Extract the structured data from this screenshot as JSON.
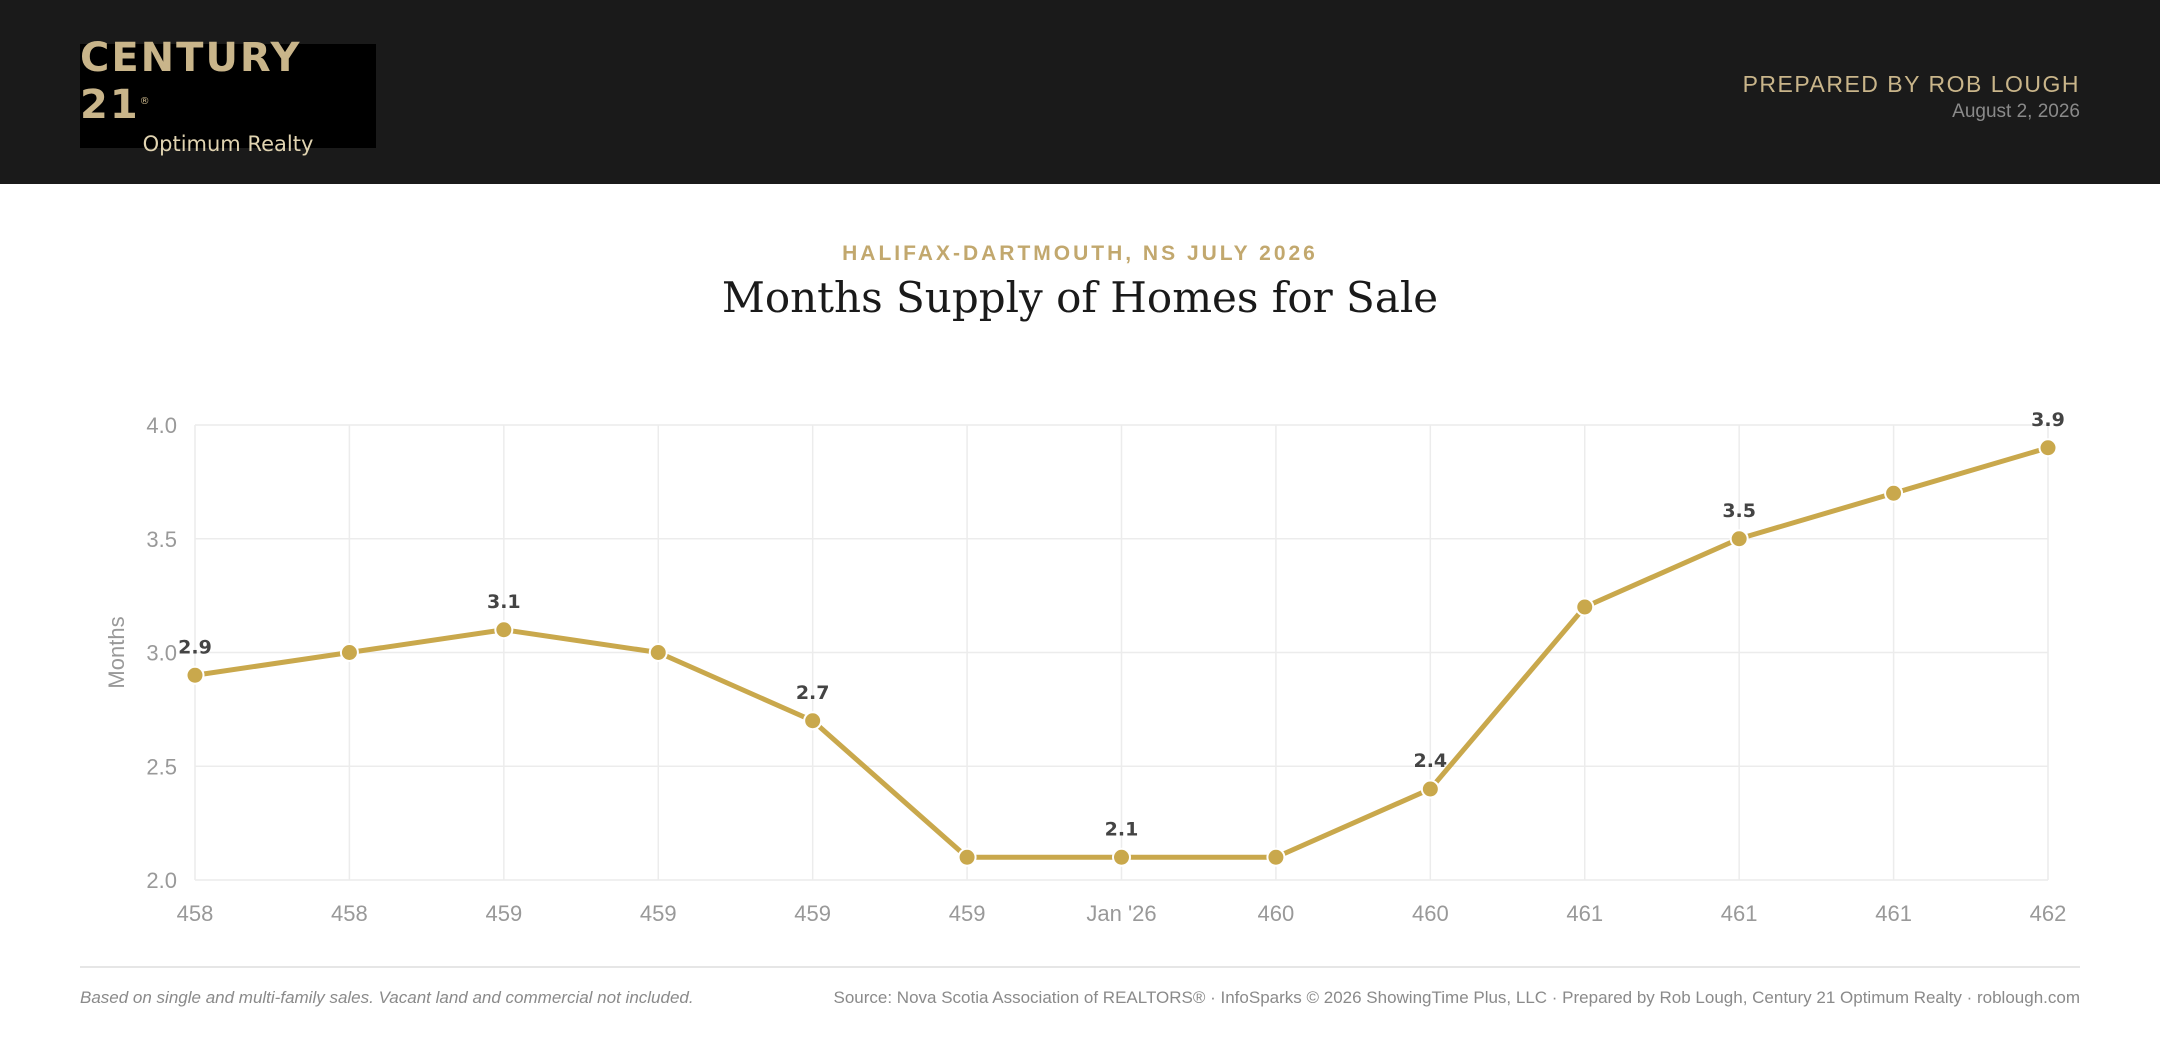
{
  "header": {
    "logo": {
      "brand": "CENTURY 21",
      "reg_mark": "®",
      "sub": "Optimum Realty"
    },
    "prepared_by": "PREPARED BY ROB LOUGH",
    "date": "August 2, 2026"
  },
  "colors": {
    "header_bg": "#1a1a1a",
    "gold": "#c9a84c",
    "accent_text": "#c2a86e"
  },
  "chart_data": {
    "type": "line",
    "subtitle": "HALIFAX-DARTMOUTH, NS JULY 2026",
    "title": "Months Supply of Homes for Sale",
    "ylabel": "Months",
    "xlabel": "",
    "ylim": [
      2.0,
      4.0
    ],
    "y_ticks": [
      "4.0",
      "3.5",
      "3.0",
      "2.5",
      "2.0"
    ],
    "grid": true,
    "categories": [
      "458",
      "458",
      "459",
      "459",
      "459",
      "459",
      "Jan '26",
      "460",
      "460",
      "461",
      "461",
      "461",
      "462"
    ],
    "series": [
      {
        "values": [
          2.9,
          3.0,
          3.1,
          3.0,
          2.7,
          2.1,
          2.1,
          2.1,
          2.4,
          3.2,
          3.5,
          3.7,
          3.9
        ],
        "data_labels": [
          "2.9",
          "",
          "3.1",
          "",
          "2.7",
          "",
          "2.1",
          "",
          "2.4",
          "",
          "3.5",
          "",
          "3.9"
        ]
      }
    ]
  },
  "footer": {
    "note": "Based on single and multi-family sales. Vacant land and commercial not included.",
    "source": "Source: Nova Scotia Association of REALTORS® · InfoSparks © 2026 ShowingTime Plus, LLC · Prepared by Rob Lough, Century 21 Optimum Realty · roblough.com"
  }
}
